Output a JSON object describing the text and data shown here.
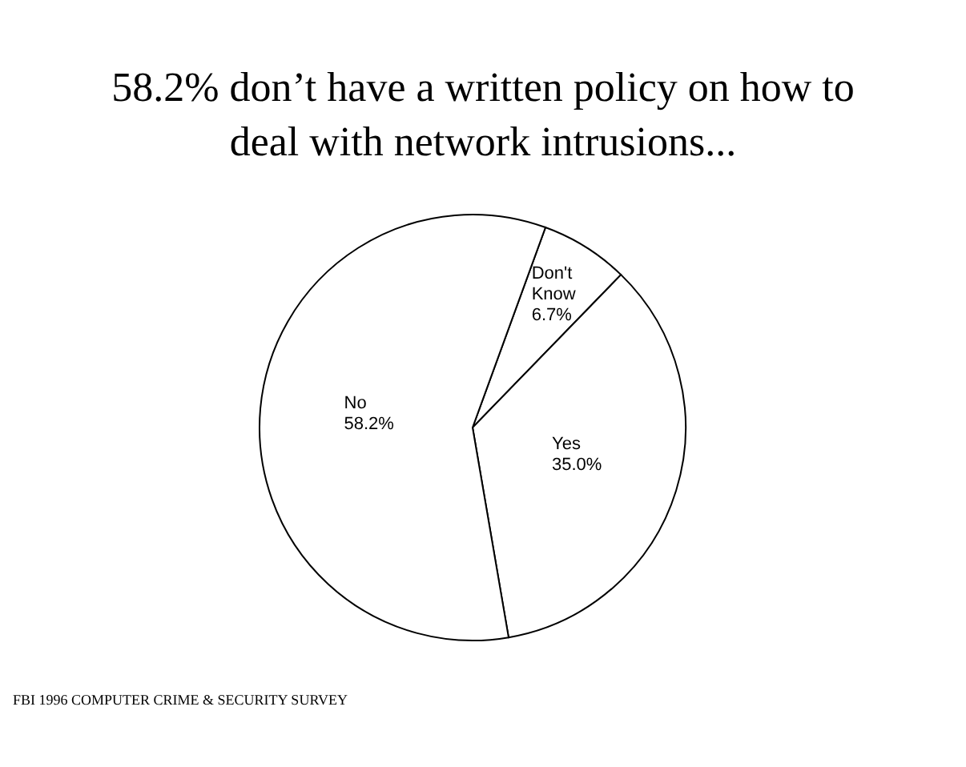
{
  "chart_data": {
    "type": "pie",
    "title": "58.2% don’t have a written policy on how to deal with network intrusions...",
    "categories": [
      "Don't Know",
      "Yes",
      "No"
    ],
    "values": [
      6.7,
      35.0,
      58.2
    ],
    "value_labels": [
      "6.7%",
      "35.0%",
      "58.2%"
    ],
    "colors": [
      "#ffffff",
      "#ffffff",
      "#ffffff"
    ],
    "annotations": [
      "FBI 1996 COMPUTER CRIME & SECURITY SURVEY"
    ]
  }
}
